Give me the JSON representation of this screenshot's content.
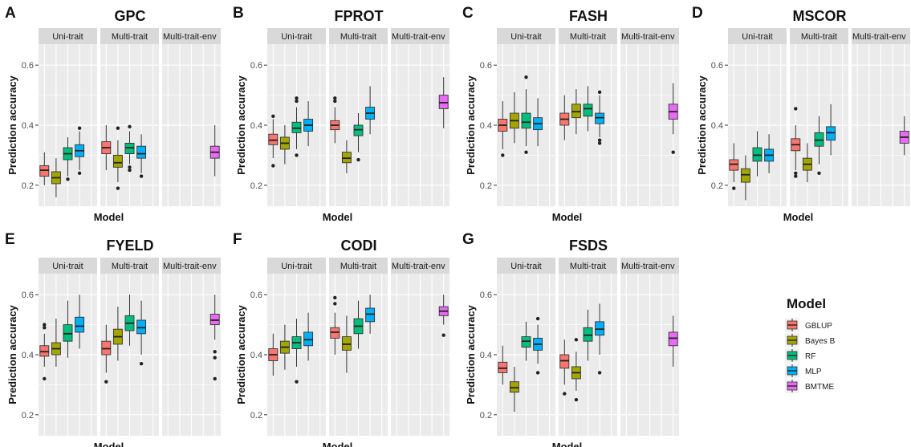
{
  "panel_letters": [
    "A",
    "B",
    "C",
    "D",
    "E",
    "F",
    "G"
  ],
  "strip_labels": [
    "Uni-trait",
    "Multi-trait",
    "Multi-trait-env"
  ],
  "xlabel": "Model",
  "ylabel": "Prediction accuracy",
  "y_ticks": [
    "0.2",
    "0.4",
    "0.6"
  ],
  "legend": {
    "title": "Model",
    "entries": [
      "GBLUP",
      "Bayes B",
      "RF",
      "MLP",
      "BMTME"
    ],
    "colors": [
      "#F8766D",
      "#A3A500",
      "#00BF7D",
      "#00B0F6",
      "#E76BF3"
    ]
  },
  "chart_data": [
    {
      "letter": "A",
      "title": "GPC",
      "type": "boxplot",
      "ylim": [
        0.13,
        0.67
      ],
      "facets": [
        {
          "name": "Uni-trait",
          "boxes": [
            {
              "model": "GBLUP",
              "min": 0.2,
              "q1": 0.23,
              "median": 0.25,
              "q3": 0.265,
              "max": 0.31,
              "outliers": []
            },
            {
              "model": "Bayes B",
              "min": 0.16,
              "q1": 0.205,
              "median": 0.225,
              "q3": 0.245,
              "max": 0.29,
              "outliers": []
            },
            {
              "model": "RF",
              "min": 0.23,
              "q1": 0.285,
              "median": 0.305,
              "q3": 0.325,
              "max": 0.36,
              "outliers": [
                0.22
              ]
            },
            {
              "model": "MLP",
              "min": 0.25,
              "q1": 0.295,
              "median": 0.315,
              "q3": 0.335,
              "max": 0.38,
              "outliers": [
                0.39,
                0.24
              ]
            }
          ]
        },
        {
          "name": "Multi-trait",
          "boxes": [
            {
              "model": "GBLUP",
              "min": 0.25,
              "q1": 0.305,
              "median": 0.325,
              "q3": 0.345,
              "max": 0.4,
              "outliers": []
            },
            {
              "model": "Bayes B",
              "min": 0.21,
              "q1": 0.26,
              "median": 0.275,
              "q3": 0.3,
              "max": 0.35,
              "outliers": [
                0.19,
                0.39
              ]
            },
            {
              "model": "RF",
              "min": 0.27,
              "q1": 0.305,
              "median": 0.325,
              "q3": 0.34,
              "max": 0.38,
              "outliers": [
                0.395,
                0.26,
                0.25
              ]
            },
            {
              "model": "MLP",
              "min": 0.24,
              "q1": 0.29,
              "median": 0.305,
              "q3": 0.33,
              "max": 0.37,
              "outliers": [
                0.23
              ]
            }
          ]
        },
        {
          "name": "Multi-trait-env",
          "boxes": [
            {
              "model": "BMTME",
              "min": 0.23,
              "q1": 0.29,
              "median": 0.31,
              "q3": 0.33,
              "max": 0.4,
              "outliers": []
            }
          ]
        }
      ]
    },
    {
      "letter": "B",
      "title": "FPROT",
      "type": "boxplot",
      "ylim": [
        0.13,
        0.67
      ],
      "facets": [
        {
          "name": "Uni-trait",
          "boxes": [
            {
              "model": "GBLUP",
              "min": 0.29,
              "q1": 0.335,
              "median": 0.35,
              "q3": 0.37,
              "max": 0.42,
              "outliers": [
                0.43,
                0.265
              ]
            },
            {
              "model": "Bayes B",
              "min": 0.27,
              "q1": 0.32,
              "median": 0.34,
              "q3": 0.36,
              "max": 0.4,
              "outliers": []
            },
            {
              "model": "RF",
              "min": 0.32,
              "q1": 0.375,
              "median": 0.39,
              "q3": 0.41,
              "max": 0.46,
              "outliers": [
                0.48,
                0.49,
                0.3
              ]
            },
            {
              "model": "MLP",
              "min": 0.33,
              "q1": 0.38,
              "median": 0.4,
              "q3": 0.42,
              "max": 0.48,
              "outliers": []
            }
          ]
        },
        {
          "name": "Multi-trait",
          "boxes": [
            {
              "model": "GBLUP",
              "min": 0.34,
              "q1": 0.385,
              "median": 0.4,
              "q3": 0.415,
              "max": 0.46,
              "outliers": [
                0.48,
                0.49
              ]
            },
            {
              "model": "Bayes B",
              "min": 0.24,
              "q1": 0.275,
              "median": 0.29,
              "q3": 0.31,
              "max": 0.35,
              "outliers": []
            },
            {
              "model": "RF",
              "min": 0.31,
              "q1": 0.365,
              "median": 0.385,
              "q3": 0.4,
              "max": 0.44,
              "outliers": [
                0.285
              ]
            },
            {
              "model": "MLP",
              "min": 0.37,
              "q1": 0.42,
              "median": 0.44,
              "q3": 0.46,
              "max": 0.53,
              "outliers": []
            }
          ]
        },
        {
          "name": "Multi-trait-env",
          "boxes": [
            {
              "model": "BMTME",
              "min": 0.39,
              "q1": 0.455,
              "median": 0.475,
              "q3": 0.5,
              "max": 0.56,
              "outliers": []
            }
          ]
        }
      ]
    },
    {
      "letter": "C",
      "title": "FASH",
      "type": "boxplot",
      "ylim": [
        0.13,
        0.67
      ],
      "facets": [
        {
          "name": "Uni-trait",
          "boxes": [
            {
              "model": "GBLUP",
              "min": 0.32,
              "q1": 0.38,
              "median": 0.4,
              "q3": 0.42,
              "max": 0.48,
              "outliers": [
                0.3
              ]
            },
            {
              "model": "Bayes B",
              "min": 0.34,
              "q1": 0.39,
              "median": 0.415,
              "q3": 0.44,
              "max": 0.51,
              "outliers": []
            },
            {
              "model": "RF",
              "min": 0.33,
              "q1": 0.39,
              "median": 0.41,
              "q3": 0.44,
              "max": 0.52,
              "outliers": [
                0.56,
                0.31
              ]
            },
            {
              "model": "MLP",
              "min": 0.33,
              "q1": 0.385,
              "median": 0.405,
              "q3": 0.425,
              "max": 0.49,
              "outliers": []
            }
          ]
        },
        {
          "name": "Multi-trait",
          "boxes": [
            {
              "model": "GBLUP",
              "min": 0.35,
              "q1": 0.4,
              "median": 0.42,
              "q3": 0.44,
              "max": 0.5,
              "outliers": []
            },
            {
              "model": "Bayes B",
              "min": 0.37,
              "q1": 0.425,
              "median": 0.445,
              "q3": 0.47,
              "max": 0.52,
              "outliers": []
            },
            {
              "model": "RF",
              "min": 0.38,
              "q1": 0.43,
              "median": 0.455,
              "q3": 0.47,
              "max": 0.53,
              "outliers": []
            },
            {
              "model": "MLP",
              "min": 0.36,
              "q1": 0.405,
              "median": 0.425,
              "q3": 0.44,
              "max": 0.5,
              "outliers": [
                0.51,
                0.35,
                0.34
              ]
            }
          ]
        },
        {
          "name": "Multi-trait-env",
          "boxes": [
            {
              "model": "BMTME",
              "min": 0.37,
              "q1": 0.42,
              "median": 0.445,
              "q3": 0.47,
              "max": 0.54,
              "outliers": [
                0.31
              ]
            }
          ]
        }
      ]
    },
    {
      "letter": "D",
      "title": "MSCOR",
      "type": "boxplot",
      "ylim": [
        0.13,
        0.67
      ],
      "facets": [
        {
          "name": "Uni-trait",
          "boxes": [
            {
              "model": "GBLUP",
              "min": 0.21,
              "q1": 0.25,
              "median": 0.27,
              "q3": 0.285,
              "max": 0.34,
              "outliers": [
                0.19
              ]
            },
            {
              "model": "Bayes B",
              "min": 0.15,
              "q1": 0.21,
              "median": 0.235,
              "q3": 0.255,
              "max": 0.3,
              "outliers": []
            },
            {
              "model": "RF",
              "min": 0.23,
              "q1": 0.28,
              "median": 0.3,
              "q3": 0.325,
              "max": 0.38,
              "outliers": []
            },
            {
              "model": "MLP",
              "min": 0.24,
              "q1": 0.28,
              "median": 0.3,
              "q3": 0.32,
              "max": 0.37,
              "outliers": []
            }
          ]
        },
        {
          "name": "Multi-trait",
          "boxes": [
            {
              "model": "GBLUP",
              "min": 0.25,
              "q1": 0.315,
              "median": 0.335,
              "q3": 0.355,
              "max": 0.4,
              "outliers": [
                0.455,
                0.24,
                0.23
              ]
            },
            {
              "model": "Bayes B",
              "min": 0.21,
              "q1": 0.25,
              "median": 0.27,
              "q3": 0.29,
              "max": 0.34,
              "outliers": []
            },
            {
              "model": "RF",
              "min": 0.27,
              "q1": 0.33,
              "median": 0.35,
              "q3": 0.375,
              "max": 0.43,
              "outliers": [
                0.24
              ]
            },
            {
              "model": "MLP",
              "min": 0.3,
              "q1": 0.35,
              "median": 0.375,
              "q3": 0.395,
              "max": 0.47,
              "outliers": []
            }
          ]
        },
        {
          "name": "Multi-trait-env",
          "boxes": [
            {
              "model": "BMTME",
              "min": 0.3,
              "q1": 0.34,
              "median": 0.36,
              "q3": 0.38,
              "max": 0.43,
              "outliers": []
            }
          ]
        }
      ]
    },
    {
      "letter": "E",
      "title": "FYELD",
      "type": "boxplot",
      "ylim": [
        0.13,
        0.67
      ],
      "facets": [
        {
          "name": "Uni-trait",
          "boxes": [
            {
              "model": "GBLUP",
              "min": 0.36,
              "q1": 0.395,
              "median": 0.41,
              "q3": 0.43,
              "max": 0.47,
              "outliers": [
                0.5,
                0.49,
                0.32
              ]
            },
            {
              "model": "Bayes B",
              "min": 0.36,
              "q1": 0.4,
              "median": 0.42,
              "q3": 0.44,
              "max": 0.52,
              "outliers": []
            },
            {
              "model": "RF",
              "min": 0.39,
              "q1": 0.445,
              "median": 0.47,
              "q3": 0.5,
              "max": 0.58,
              "outliers": []
            },
            {
              "model": "MLP",
              "min": 0.42,
              "q1": 0.475,
              "median": 0.495,
              "q3": 0.525,
              "max": 0.6,
              "outliers": []
            }
          ]
        },
        {
          "name": "Multi-trait",
          "boxes": [
            {
              "model": "GBLUP",
              "min": 0.34,
              "q1": 0.4,
              "median": 0.42,
              "q3": 0.445,
              "max": 0.5,
              "outliers": [
                0.31
              ]
            },
            {
              "model": "Bayes B",
              "min": 0.38,
              "q1": 0.435,
              "median": 0.46,
              "q3": 0.485,
              "max": 0.56,
              "outliers": []
            },
            {
              "model": "RF",
              "min": 0.43,
              "q1": 0.48,
              "median": 0.505,
              "q3": 0.53,
              "max": 0.6,
              "outliers": []
            },
            {
              "model": "MLP",
              "min": 0.4,
              "q1": 0.47,
              "median": 0.49,
              "q3": 0.515,
              "max": 0.58,
              "outliers": [
                0.37
              ]
            }
          ]
        },
        {
          "name": "Multi-trait-env",
          "boxes": [
            {
              "model": "BMTME",
              "min": 0.45,
              "q1": 0.5,
              "median": 0.515,
              "q3": 0.535,
              "max": 0.6,
              "outliers": [
                0.41,
                0.39,
                0.32
              ]
            }
          ]
        }
      ]
    },
    {
      "letter": "F",
      "title": "CODI",
      "type": "boxplot",
      "ylim": [
        0.13,
        0.67
      ],
      "facets": [
        {
          "name": "Uni-trait",
          "boxes": [
            {
              "model": "GBLUP",
              "min": 0.33,
              "q1": 0.38,
              "median": 0.4,
              "q3": 0.42,
              "max": 0.47,
              "outliers": []
            },
            {
              "model": "Bayes B",
              "min": 0.35,
              "q1": 0.405,
              "median": 0.425,
              "q3": 0.445,
              "max": 0.5,
              "outliers": []
            },
            {
              "model": "RF",
              "min": 0.36,
              "q1": 0.42,
              "median": 0.44,
              "q3": 0.46,
              "max": 0.52,
              "outliers": [
                0.31
              ]
            },
            {
              "model": "MLP",
              "min": 0.38,
              "q1": 0.43,
              "median": 0.45,
              "q3": 0.475,
              "max": 0.54,
              "outliers": []
            }
          ]
        },
        {
          "name": "Multi-trait",
          "boxes": [
            {
              "model": "GBLUP",
              "min": 0.4,
              "q1": 0.455,
              "median": 0.475,
              "q3": 0.49,
              "max": 0.54,
              "outliers": [
                0.59,
                0.57
              ]
            },
            {
              "model": "Bayes B",
              "min": 0.34,
              "q1": 0.415,
              "median": 0.435,
              "q3": 0.46,
              "max": 0.53,
              "outliers": []
            },
            {
              "model": "RF",
              "min": 0.42,
              "q1": 0.47,
              "median": 0.495,
              "q3": 0.52,
              "max": 0.58,
              "outliers": []
            },
            {
              "model": "MLP",
              "min": 0.47,
              "q1": 0.51,
              "median": 0.535,
              "q3": 0.555,
              "max": 0.6,
              "outliers": []
            }
          ]
        },
        {
          "name": "Multi-trait-env",
          "boxes": [
            {
              "model": "BMTME",
              "min": 0.5,
              "q1": 0.53,
              "median": 0.545,
              "q3": 0.56,
              "max": 0.6,
              "outliers": [
                0.465
              ]
            }
          ]
        }
      ]
    },
    {
      "letter": "G",
      "title": "FSDS",
      "type": "boxplot",
      "ylim": [
        0.13,
        0.67
      ],
      "facets": [
        {
          "name": "Uni-trait",
          "boxes": [
            {
              "model": "GBLUP",
              "min": 0.3,
              "q1": 0.34,
              "median": 0.355,
              "q3": 0.375,
              "max": 0.43,
              "outliers": []
            },
            {
              "model": "Bayes B",
              "min": 0.21,
              "q1": 0.275,
              "median": 0.29,
              "q3": 0.31,
              "max": 0.36,
              "outliers": []
            },
            {
              "model": "RF",
              "min": 0.38,
              "q1": 0.425,
              "median": 0.445,
              "q3": 0.46,
              "max": 0.51,
              "outliers": []
            },
            {
              "model": "MLP",
              "min": 0.37,
              "q1": 0.415,
              "median": 0.435,
              "q3": 0.455,
              "max": 0.5,
              "outliers": [
                0.52,
                0.34
              ]
            }
          ]
        },
        {
          "name": "Multi-trait",
          "boxes": [
            {
              "model": "GBLUP",
              "min": 0.3,
              "q1": 0.355,
              "median": 0.38,
              "q3": 0.4,
              "max": 0.45,
              "outliers": [
                0.27
              ]
            },
            {
              "model": "Bayes B",
              "min": 0.28,
              "q1": 0.32,
              "median": 0.34,
              "q3": 0.36,
              "max": 0.41,
              "outliers": [
                0.45,
                0.25
              ]
            },
            {
              "model": "RF",
              "min": 0.38,
              "q1": 0.445,
              "median": 0.465,
              "q3": 0.49,
              "max": 0.55,
              "outliers": []
            },
            {
              "model": "MLP",
              "min": 0.4,
              "q1": 0.465,
              "median": 0.485,
              "q3": 0.51,
              "max": 0.57,
              "outliers": [
                0.34
              ]
            }
          ]
        },
        {
          "name": "Multi-trait-env",
          "boxes": [
            {
              "model": "BMTME",
              "min": 0.36,
              "q1": 0.43,
              "median": 0.455,
              "q3": 0.475,
              "max": 0.53,
              "outliers": []
            }
          ]
        }
      ]
    }
  ]
}
